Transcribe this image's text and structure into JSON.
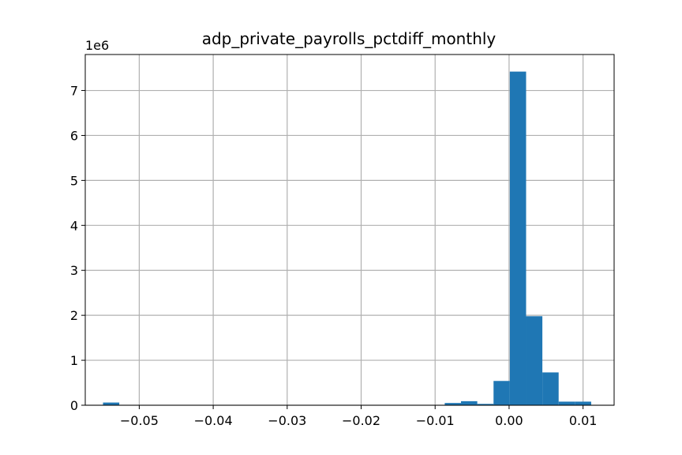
{
  "chart_data": {
    "type": "bar",
    "title": "adp_private_payrolls_pctdiff_monthly",
    "xlabel": "",
    "ylabel": "",
    "y_offset_label": "1e6",
    "xlim": [
      -0.0573,
      0.0142
    ],
    "ylim": [
      0,
      7.8
    ],
    "grid": true,
    "bar_color": "#1f77b4",
    "x_ticks": [
      {
        "value": -0.05,
        "label": "−0.05"
      },
      {
        "value": -0.04,
        "label": "−0.04"
      },
      {
        "value": -0.03,
        "label": "−0.03"
      },
      {
        "value": -0.02,
        "label": "−0.02"
      },
      {
        "value": -0.01,
        "label": "−0.01"
      },
      {
        "value": 0.0,
        "label": "0.00"
      },
      {
        "value": 0.01,
        "label": "0.01"
      }
    ],
    "y_ticks": [
      {
        "value": 0,
        "label": "0"
      },
      {
        "value": 1,
        "label": "1"
      },
      {
        "value": 2,
        "label": "2"
      },
      {
        "value": 3,
        "label": "3"
      },
      {
        "value": 4,
        "label": "4"
      },
      {
        "value": 5,
        "label": "5"
      },
      {
        "value": 6,
        "label": "6"
      },
      {
        "value": 7,
        "label": "7"
      }
    ],
    "bins": [
      {
        "x0": -0.0549,
        "x1": -0.0527,
        "count": 0.06
      },
      {
        "x0": -0.0527,
        "x1": -0.0505,
        "count": 0.0
      },
      {
        "x0": -0.0505,
        "x1": -0.0483,
        "count": 0.0
      },
      {
        "x0": -0.0483,
        "x1": -0.0461,
        "count": 0.0
      },
      {
        "x0": -0.0461,
        "x1": -0.0439,
        "count": 0.0
      },
      {
        "x0": -0.0439,
        "x1": -0.0417,
        "count": 0.0
      },
      {
        "x0": -0.0417,
        "x1": -0.0395,
        "count": 0.0
      },
      {
        "x0": -0.0395,
        "x1": -0.0373,
        "count": 0.0
      },
      {
        "x0": -0.0373,
        "x1": -0.0351,
        "count": 0.0
      },
      {
        "x0": -0.0351,
        "x1": -0.0329,
        "count": 0.0
      },
      {
        "x0": -0.0329,
        "x1": -0.0307,
        "count": 0.0
      },
      {
        "x0": -0.0307,
        "x1": -0.0285,
        "count": 0.0
      },
      {
        "x0": -0.0285,
        "x1": -0.0263,
        "count": 0.0
      },
      {
        "x0": -0.0263,
        "x1": -0.0241,
        "count": 0.0
      },
      {
        "x0": -0.0241,
        "x1": -0.0219,
        "count": 0.0
      },
      {
        "x0": -0.0219,
        "x1": -0.0197,
        "count": 0.0
      },
      {
        "x0": -0.0197,
        "x1": -0.0175,
        "count": 0.0
      },
      {
        "x0": -0.0175,
        "x1": -0.0153,
        "count": 0.0
      },
      {
        "x0": -0.0153,
        "x1": -0.0131,
        "count": 0.0
      },
      {
        "x0": -0.0131,
        "x1": -0.0109,
        "count": 0.0
      },
      {
        "x0": -0.0109,
        "x1": -0.0087,
        "count": 0.0
      },
      {
        "x0": -0.0087,
        "x1": -0.0065,
        "count": 0.05
      },
      {
        "x0": -0.0065,
        "x1": -0.0043,
        "count": 0.09
      },
      {
        "x0": -0.0043,
        "x1": -0.0021,
        "count": 0.03
      },
      {
        "x0": -0.0021,
        "x1": 0.0001,
        "count": 0.54
      },
      {
        "x0": 0.0001,
        "x1": 0.0023,
        "count": 7.42
      },
      {
        "x0": 0.0023,
        "x1": 0.0045,
        "count": 1.98
      },
      {
        "x0": 0.0045,
        "x1": 0.0067,
        "count": 0.73
      },
      {
        "x0": 0.0067,
        "x1": 0.0089,
        "count": 0.08
      },
      {
        "x0": 0.0089,
        "x1": 0.0111,
        "count": 0.08
      }
    ]
  }
}
